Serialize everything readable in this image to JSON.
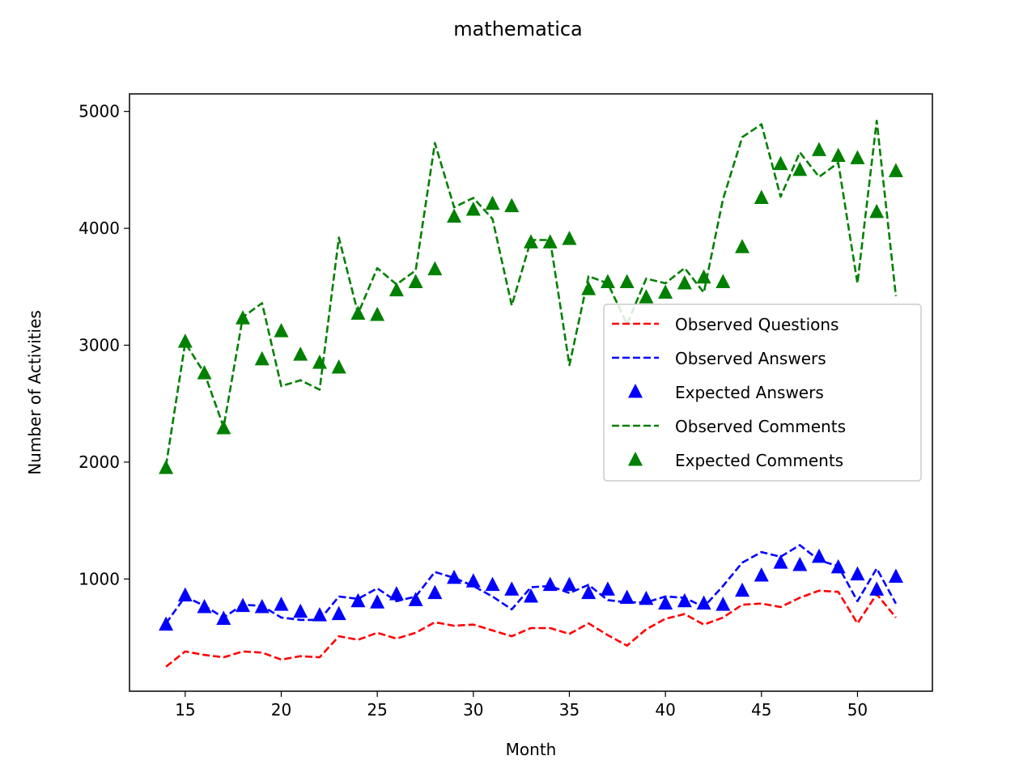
{
  "chart_data": {
    "type": "line",
    "title": "mathematica",
    "xlabel": "Month",
    "ylabel": "Number of Activities",
    "xlim": [
      12.1,
      53.9
    ],
    "ylim": [
      40,
      5150
    ],
    "xticks": [
      15,
      20,
      25,
      30,
      35,
      40,
      45,
      50
    ],
    "yticks": [
      1000,
      2000,
      3000,
      4000,
      5000
    ],
    "grid": false,
    "legend_position": "center-right",
    "x": [
      14,
      15,
      16,
      17,
      18,
      19,
      20,
      21,
      22,
      23,
      24,
      25,
      26,
      27,
      28,
      29,
      30,
      31,
      32,
      33,
      34,
      35,
      36,
      37,
      38,
      39,
      40,
      41,
      42,
      43,
      44,
      45,
      46,
      47,
      48,
      49,
      50,
      51,
      52
    ],
    "series": [
      {
        "name": "Observed Questions",
        "style": "dashed",
        "color": "#ff0000",
        "values": [
          250,
          380,
          350,
          330,
          380,
          370,
          310,
          340,
          330,
          510,
          480,
          540,
          490,
          540,
          630,
          600,
          610,
          560,
          510,
          580,
          580,
          530,
          620,
          520,
          430,
          570,
          660,
          700,
          610,
          670,
          780,
          790,
          760,
          840,
          900,
          890,
          620,
          870,
          670
        ]
      },
      {
        "name": "Observed Answers",
        "style": "dashed",
        "color": "#0000ff",
        "values": [
          620,
          850,
          770,
          670,
          780,
          770,
          670,
          650,
          650,
          850,
          830,
          920,
          810,
          850,
          1060,
          1010,
          940,
          850,
          740,
          930,
          940,
          880,
          950,
          820,
          800,
          800,
          850,
          840,
          760,
          940,
          1140,
          1230,
          1190,
          1290,
          1160,
          1110,
          810,
          1090,
          790
        ]
      },
      {
        "name": "Expected Answers",
        "style": "triangle-markers",
        "color": "#0000ff",
        "values": [
          610,
          860,
          760,
          660,
          770,
          760,
          780,
          720,
          690,
          700,
          810,
          800,
          870,
          820,
          880,
          1010,
          980,
          950,
          910,
          850,
          950,
          950,
          880,
          910,
          840,
          830,
          790,
          810,
          790,
          780,
          900,
          1030,
          1140,
          1120,
          1190,
          1100,
          1040,
          910,
          1020
        ]
      },
      {
        "name": "Observed Comments",
        "style": "dashed",
        "color": "#008000",
        "values": [
          1970,
          3020,
          2760,
          2300,
          3240,
          3360,
          2650,
          2700,
          2620,
          3920,
          3270,
          3660,
          3520,
          3640,
          4730,
          4180,
          4260,
          4080,
          3340,
          3900,
          3900,
          2830,
          3590,
          3530,
          3180,
          3570,
          3530,
          3660,
          3450,
          4250,
          4780,
          4890,
          4270,
          4650,
          4440,
          4560,
          3530,
          4920,
          3420
        ]
      },
      {
        "name": "Expected Comments",
        "style": "triangle-markers",
        "color": "#008000",
        "values": [
          1950,
          3030,
          2760,
          2290,
          3230,
          2880,
          3120,
          2920,
          2850,
          2810,
          3270,
          3260,
          3470,
          3540,
          3650,
          4100,
          4160,
          4210,
          4190,
          3880,
          3880,
          3910,
          3480,
          3540,
          3540,
          3410,
          3450,
          3530,
          3580,
          3540,
          3840,
          4260,
          4550,
          4500,
          4670,
          4620,
          4600,
          4140,
          4490
        ]
      }
    ]
  }
}
